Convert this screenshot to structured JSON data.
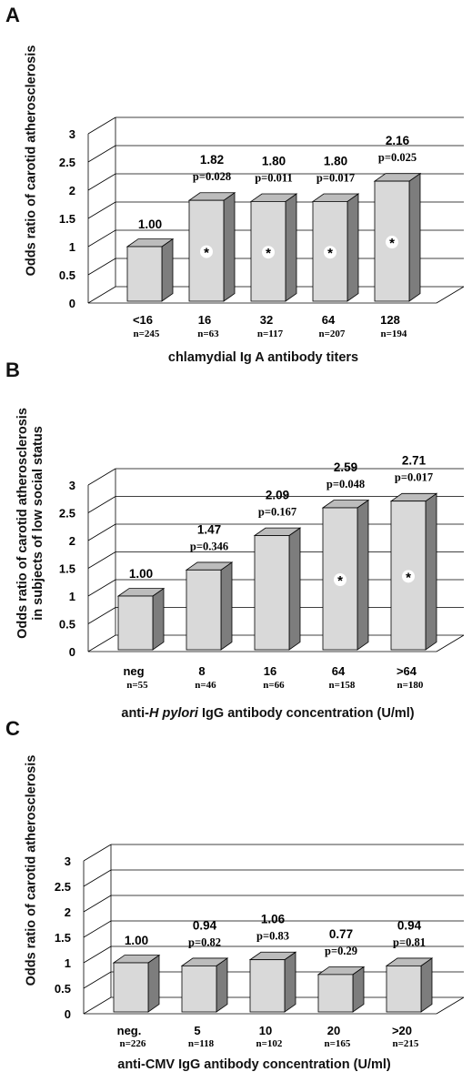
{
  "chart_data": [
    {
      "panel": "A",
      "type": "bar",
      "ylabel": "Odds ratio of carotid atherosclerosis",
      "xlabel": "chlamydial Ig A  antibody titers",
      "ylim": [
        0,
        3
      ],
      "yticks": [
        "0",
        "0.5",
        "1",
        "1.5",
        "2",
        "2.5",
        "3"
      ],
      "categories": [
        "<16",
        "16",
        "32",
        "64",
        "128"
      ],
      "n_labels": [
        "n=245",
        "n=63",
        "n=117",
        "n=207",
        "n=194"
      ],
      "values": [
        1.0,
        1.82,
        1.8,
        1.8,
        2.16
      ],
      "value_labels": [
        "1.00",
        "1.82",
        "1.80",
        "1.80",
        "2.16"
      ],
      "p_labels": [
        "",
        "p=0.028",
        "p=0.011",
        "p=0.017",
        "p=0.025"
      ],
      "significant": [
        false,
        true,
        true,
        true,
        true
      ],
      "marker": "*"
    },
    {
      "panel": "B",
      "type": "bar",
      "ylabel": "Odds ratio of carotid atherosclerosis\nin subjects of low social status",
      "xlabel": "anti-H pylori IgG antibody concentration (U/ml)",
      "ylim": [
        0,
        3
      ],
      "yticks": [
        "0",
        "0.5",
        "1",
        "1.5",
        "2",
        "2.5",
        "3"
      ],
      "categories": [
        "neg",
        "8",
        "16",
        "64",
        ">64"
      ],
      "n_labels": [
        "n=55",
        "n=46",
        "n=66",
        "n=158",
        "n=180"
      ],
      "values": [
        1.0,
        1.47,
        2.09,
        2.59,
        2.71
      ],
      "value_labels": [
        "1.00",
        "1.47",
        "2.09",
        "2.59",
        "2.71"
      ],
      "p_labels": [
        "",
        "p=0.346",
        "p=0.167",
        "p=0.048",
        "p=0.017"
      ],
      "significant": [
        false,
        false,
        false,
        true,
        true
      ],
      "marker": "*"
    },
    {
      "panel": "C",
      "type": "bar",
      "ylabel": "Odds ratio of carotid atherosclerosis",
      "xlabel": "anti-CMV IgG antibody concentration (U/ml)",
      "ylim": [
        0,
        3
      ],
      "yticks": [
        "0",
        "0.5",
        "1",
        "1.5",
        "2",
        "2.5",
        "3"
      ],
      "categories": [
        "neg.",
        "5",
        "10",
        "20",
        ">20"
      ],
      "n_labels": [
        "n=226",
        "n=118",
        "n=102",
        "n=165",
        "n=215"
      ],
      "values": [
        1.0,
        0.94,
        1.06,
        0.77,
        0.94
      ],
      "value_labels": [
        "1.00",
        "0.94",
        "1.06",
        "0.77",
        "0.94"
      ],
      "p_labels": [
        "",
        "p=0.82",
        "p=0.83",
        "p=0.29",
        "p=0.81"
      ],
      "significant": [
        false,
        false,
        false,
        false,
        false
      ],
      "marker": "*"
    }
  ],
  "colors": {
    "bar_front": "#d9d9d9",
    "bar_side": "#7d7d7d",
    "bar_top": "#bcbcbc",
    "grid": "#000000"
  }
}
